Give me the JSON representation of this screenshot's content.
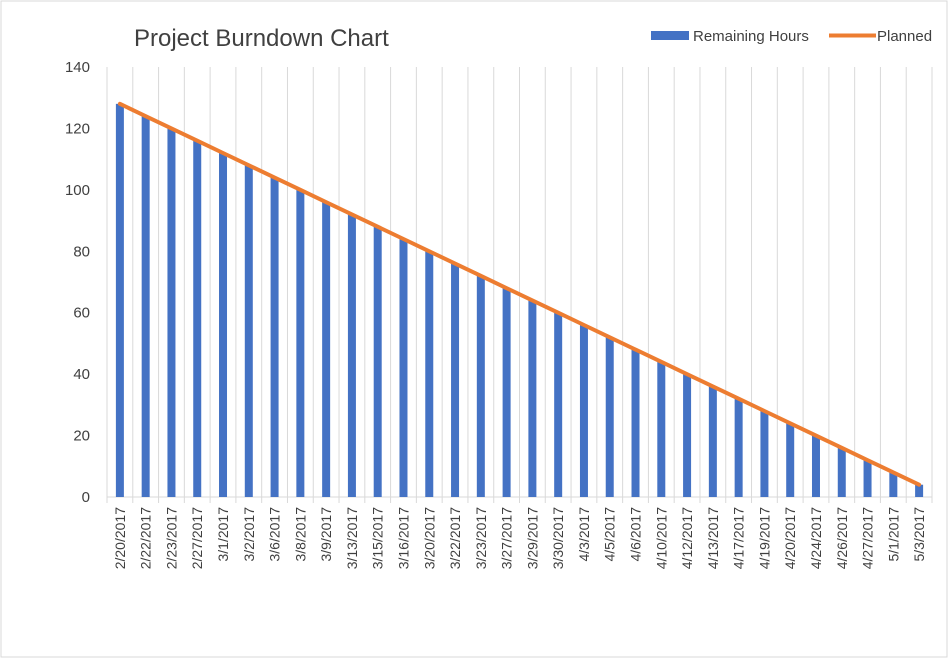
{
  "chart_data": {
    "type": "bar",
    "title": "Project Burndown Chart",
    "xlabel": "",
    "ylabel": "",
    "ylim": [
      0,
      140
    ],
    "yticks": [
      0,
      20,
      40,
      60,
      80,
      100,
      120,
      140
    ],
    "grid": "vertical",
    "legend": "top-right",
    "categories": [
      "2/20/2017",
      "2/22/2017",
      "2/23/2017",
      "2/27/2017",
      "3/1/2017",
      "3/2/2017",
      "3/6/2017",
      "3/8/2017",
      "3/9/2017",
      "3/13/2017",
      "3/15/2017",
      "3/16/2017",
      "3/20/2017",
      "3/22/2017",
      "3/23/2017",
      "3/27/2017",
      "3/29/2017",
      "3/30/2017",
      "4/3/2017",
      "4/5/2017",
      "4/6/2017",
      "4/10/2017",
      "4/12/2017",
      "4/13/2017",
      "4/17/2017",
      "4/19/2017",
      "4/20/2017",
      "4/24/2017",
      "4/26/2017",
      "4/27/2017",
      "5/1/2017",
      "5/3/2017"
    ],
    "series": [
      {
        "name": "Remaining Hours",
        "kind": "bar",
        "color": "#4472C4",
        "values": [
          128,
          124,
          120,
          116,
          112,
          108,
          104,
          100,
          96,
          92,
          88,
          84,
          80,
          76,
          72,
          68,
          64,
          60,
          56,
          52,
          48,
          44,
          40,
          36,
          32,
          28,
          24,
          20,
          16,
          12,
          8,
          4
        ]
      },
      {
        "name": "Planned",
        "kind": "line",
        "color": "#ED7D31",
        "values": [
          128,
          124,
          120,
          116,
          112,
          108,
          104,
          100,
          96,
          92,
          88,
          84,
          80,
          76,
          72,
          68,
          64,
          60,
          56,
          52,
          48,
          44,
          40,
          36,
          32,
          28,
          24,
          20,
          16,
          12,
          8,
          4
        ]
      }
    ]
  }
}
